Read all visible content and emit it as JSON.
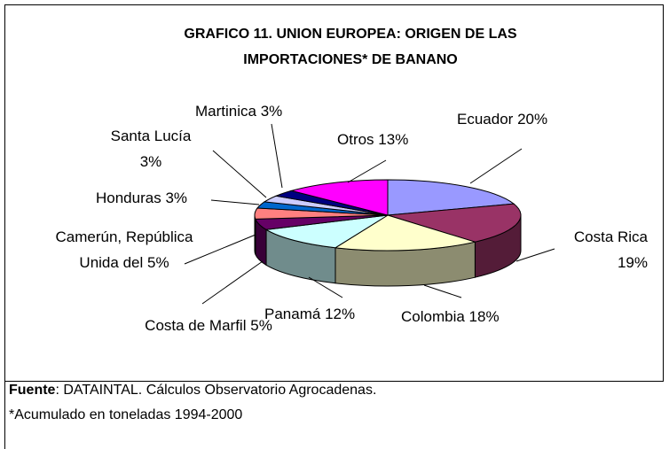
{
  "chart_data": {
    "type": "pie",
    "title": "GRAFICO 11. UNION EUROPEA: ORIGEN DE LAS IMPORTACIONES* DE BANANO",
    "categories": [
      "Ecuador",
      "Costa Rica",
      "Colombia",
      "Panamá",
      "Costa de Marfil",
      "Camerún, República Unida del",
      "Honduras",
      "Santa Lucía",
      "Martinica",
      "Otros"
    ],
    "values": [
      20,
      19,
      18,
      12,
      5,
      5,
      3,
      3,
      3,
      13
    ],
    "value_labels": [
      "20%",
      "19%",
      "18%",
      "12%",
      "5%",
      "5%",
      "3%",
      "3%",
      "3%",
      "13%"
    ],
    "colors": [
      "#9999ff",
      "#993366",
      "#ffffcc",
      "#ccffff",
      "#660066",
      "#ff8080",
      "#0066cc",
      "#ccccff",
      "#000080",
      "#ff00ff"
    ],
    "source_label": "Fuente",
    "source": ": DATAINTAL. Cálculos Observatorio Agrocadenas.",
    "note": "*Acumulado en toneladas 1994-2000"
  }
}
